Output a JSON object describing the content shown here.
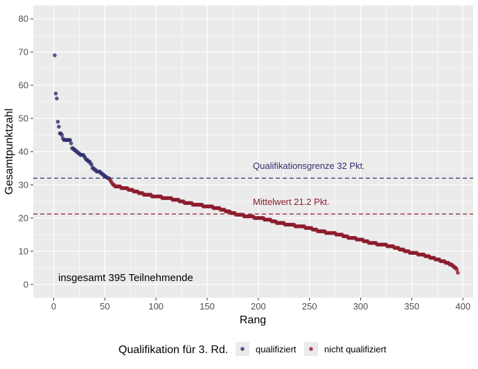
{
  "chart_data": {
    "type": "scatter",
    "xlabel": "Rang",
    "ylabel": "Gesamtpunktzahl",
    "xlim": [
      -20,
      410
    ],
    "ylim": [
      -4,
      84
    ],
    "x_ticks": [
      0,
      50,
      100,
      150,
      200,
      250,
      300,
      350,
      400
    ],
    "y_ticks": [
      0,
      10,
      20,
      30,
      40,
      50,
      60,
      70,
      80
    ],
    "grid": true,
    "total_points": 395,
    "colors": {
      "qualified": "#2f2f6e",
      "not_qualified": "#8b1a2b"
    },
    "series": [
      {
        "name": "qualifiziert",
        "points": [
          [
            1,
            69
          ],
          [
            2,
            57.5
          ],
          [
            3,
            56
          ],
          [
            4,
            49
          ],
          [
            5,
            47.5
          ],
          [
            6,
            45.5
          ],
          [
            7,
            45.5
          ],
          [
            8,
            45
          ],
          [
            9,
            44
          ],
          [
            10,
            43.5
          ],
          [
            12,
            43.5
          ],
          [
            14,
            43.5
          ],
          [
            16,
            43.5
          ],
          [
            17,
            42.5
          ],
          [
            18,
            41
          ],
          [
            20,
            40.5
          ],
          [
            22,
            40
          ],
          [
            24,
            39.5
          ],
          [
            26,
            39
          ],
          [
            28,
            39
          ],
          [
            30,
            38.5
          ],
          [
            32,
            37.5
          ],
          [
            34,
            37
          ],
          [
            36,
            36.5
          ],
          [
            38,
            35
          ],
          [
            40,
            34.5
          ],
          [
            42,
            34
          ],
          [
            44,
            34
          ],
          [
            46,
            33.5
          ],
          [
            48,
            33
          ],
          [
            50,
            32.5
          ],
          [
            52,
            32.2
          ],
          [
            54,
            32
          ]
        ]
      },
      {
        "name": "nicht qualifiziert",
        "points": [
          [
            55,
            31.5
          ],
          [
            57,
            30.5
          ],
          [
            60,
            29.5
          ],
          [
            70,
            29
          ],
          [
            80,
            28
          ],
          [
            90,
            27
          ],
          [
            100,
            26.5
          ],
          [
            110,
            26
          ],
          [
            120,
            25.5
          ],
          [
            130,
            24.5
          ],
          [
            140,
            24
          ],
          [
            150,
            23.5
          ],
          [
            160,
            23
          ],
          [
            170,
            22
          ],
          [
            180,
            21
          ],
          [
            190,
            20.5
          ],
          [
            200,
            20
          ],
          [
            210,
            19.5
          ],
          [
            220,
            18.5
          ],
          [
            230,
            18
          ],
          [
            240,
            17.5
          ],
          [
            250,
            17
          ],
          [
            260,
            16
          ],
          [
            270,
            15.5
          ],
          [
            280,
            15
          ],
          [
            290,
            14
          ],
          [
            300,
            13.5
          ],
          [
            310,
            12.5
          ],
          [
            320,
            12
          ],
          [
            330,
            11.5
          ],
          [
            340,
            10.5
          ],
          [
            350,
            9.5
          ],
          [
            360,
            9
          ],
          [
            370,
            8
          ],
          [
            380,
            7
          ],
          [
            388,
            6
          ],
          [
            392,
            5
          ],
          [
            394,
            4.5
          ],
          [
            395,
            3.5
          ]
        ]
      }
    ],
    "reference_lines": [
      {
        "y": 32,
        "label": "Qualifikationsgrenze 32 Pkt.",
        "color": "#2f2f6e"
      },
      {
        "y": 21.2,
        "label": "Mittelwert 21.2 Pkt.",
        "color": "#8b1a2b"
      }
    ],
    "annotation": "insgesamt 395 Teilnehmende",
    "legend": {
      "title": "Qualifikation für 3. Rd.",
      "position": "bottom",
      "entries": [
        "qualifiziert",
        "nicht qualifiziert"
      ]
    }
  }
}
